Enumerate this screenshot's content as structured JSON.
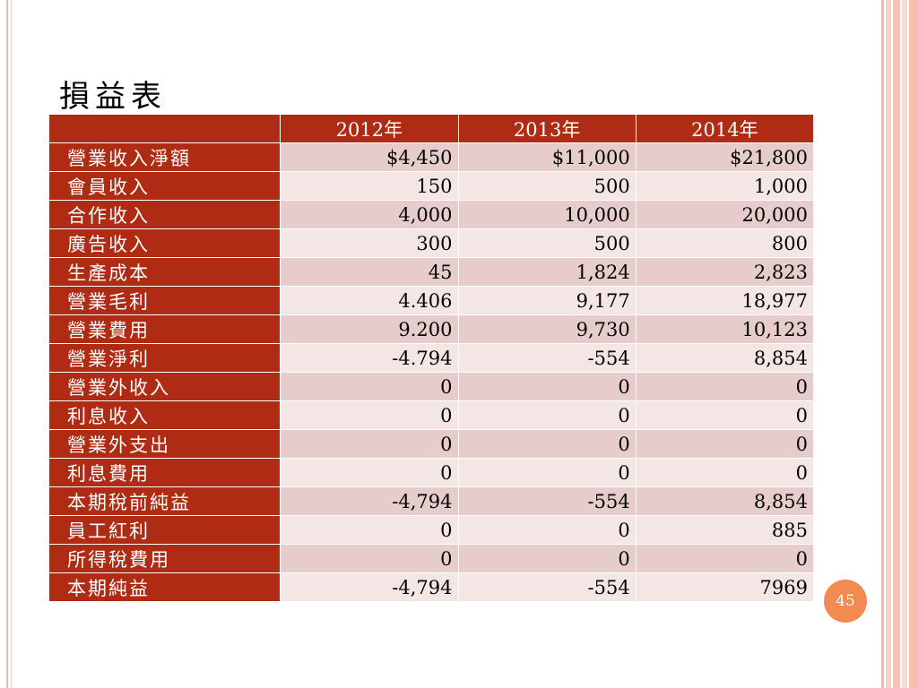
{
  "title": "損益表",
  "page_number": "45",
  "table": {
    "headers": [
      "",
      "2012年",
      "2013年",
      "2014年"
    ],
    "rows": [
      {
        "label": "營業收入淨額",
        "values": [
          "$4,450",
          "$11,000",
          "$21,800"
        ]
      },
      {
        "label": "會員收入",
        "values": [
          "150",
          "500",
          "1,000"
        ]
      },
      {
        "label": "合作收入",
        "values": [
          "4,000",
          "10,000",
          "20,000"
        ]
      },
      {
        "label": "廣告收入",
        "values": [
          "300",
          "500",
          "800"
        ]
      },
      {
        "label": "生產成本",
        "values": [
          "45",
          "1,824",
          "2,823"
        ]
      },
      {
        "label": "營業毛利",
        "values": [
          "4.406",
          "9,177",
          "18,977"
        ]
      },
      {
        "label": "營業費用",
        "values": [
          "9.200",
          "9,730",
          "10,123"
        ]
      },
      {
        "label": "營業淨利",
        "values": [
          "-4.794",
          "-554",
          "8,854"
        ]
      },
      {
        "label": "營業外收入",
        "values": [
          "0",
          "0",
          "0"
        ]
      },
      {
        "label": "利息收入",
        "values": [
          "0",
          "0",
          "0"
        ]
      },
      {
        "label": "營業外支出",
        "values": [
          "0",
          "0",
          "0"
        ]
      },
      {
        "label": "利息費用",
        "values": [
          "0",
          "0",
          "0"
        ]
      },
      {
        "label": "本期稅前純益",
        "values": [
          "-4,794",
          "-554",
          "8,854"
        ]
      },
      {
        "label": "員工紅利",
        "values": [
          "0",
          "0",
          "885"
        ]
      },
      {
        "label": "所得稅費用",
        "values": [
          "0",
          "0",
          "0"
        ]
      },
      {
        "label": "本期純益",
        "values": [
          "-4,794",
          "-554",
          "7969"
        ]
      }
    ]
  },
  "colors": {
    "header_bg": "#b02b13",
    "row_odd": "#e6cdcb",
    "row_even": "#f3e6e5",
    "badge": "#f28a52"
  }
}
